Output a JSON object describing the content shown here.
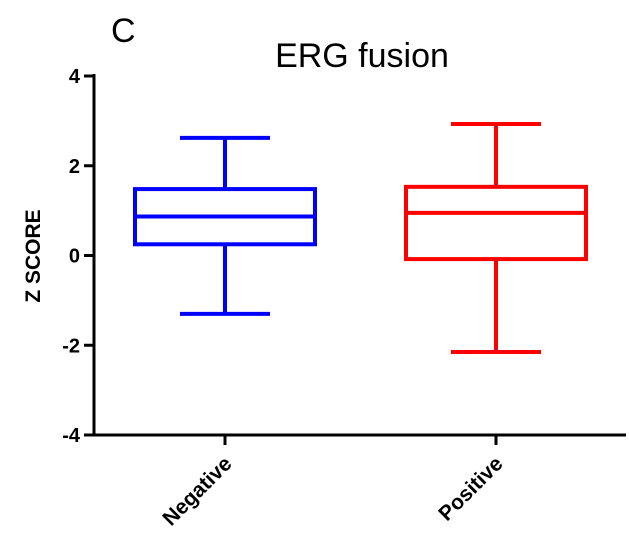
{
  "panel_letter": "C",
  "colors": {
    "negative": "#0000ff",
    "positive": "#ff0000",
    "axis": "#000000"
  },
  "chart_data": {
    "type": "box",
    "title": "ERG fusion",
    "xlabel": "",
    "ylabel": "Z SCORE",
    "ylim": [
      -4,
      4
    ],
    "yticks": [
      -4,
      -2,
      0,
      2,
      4
    ],
    "ytick_labels": [
      "-4",
      "-2",
      "0",
      "2",
      "4"
    ],
    "categories": [
      "Negative",
      "Positive"
    ],
    "series": [
      {
        "category": "Negative",
        "min": -1.3,
        "q1": 0.25,
        "median": 0.87,
        "q3": 1.48,
        "max": 2.62
      },
      {
        "category": "Positive",
        "min": -2.15,
        "q1": -0.08,
        "median": 0.95,
        "q3": 1.53,
        "max": 2.93
      }
    ],
    "grid": false,
    "legend": "none"
  }
}
